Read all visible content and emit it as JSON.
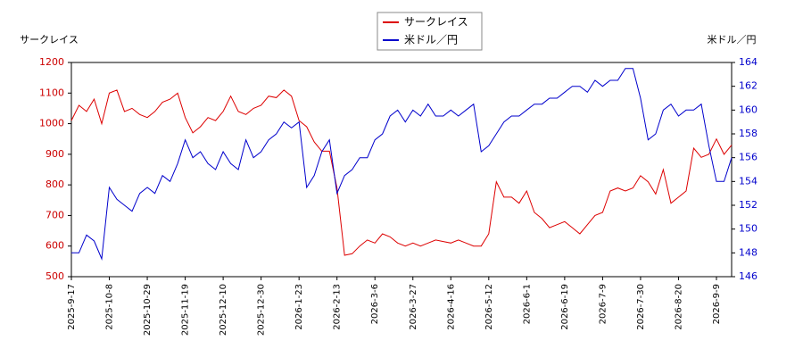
{
  "chart_data": {
    "type": "line",
    "y_label": "サークレイス",
    "y2_label": "米ドル／円",
    "categories": [
      "2025-9-17",
      null,
      null,
      null,
      null,
      "2025-10-8",
      null,
      null,
      null,
      null,
      "2025-10-29",
      null,
      null,
      null,
      null,
      "2025-11-19",
      null,
      null,
      null,
      null,
      "2025-12-10",
      null,
      null,
      null,
      null,
      "2025-12-30",
      null,
      null,
      null,
      null,
      "2026-1-23",
      null,
      null,
      null,
      null,
      "2026-2-13",
      null,
      null,
      null,
      null,
      "2026-3-6",
      null,
      null,
      null,
      null,
      "2026-3-27",
      null,
      null,
      null,
      null,
      "2026-4-16",
      null,
      null,
      null,
      null,
      "2026-5-12",
      null,
      null,
      null,
      null,
      "2026-6-1",
      null,
      null,
      null,
      null,
      "2026-6-19",
      null,
      null,
      null,
      null,
      "2026-7-9",
      null,
      null,
      null,
      null,
      "2026-7-30",
      null,
      null,
      null,
      null,
      "2026-8-20",
      null,
      null,
      null,
      null,
      "2026-9-9",
      null,
      null
    ],
    "series": [
      {
        "name": "サークレイス",
        "color": "#dd0000",
        "axis": "y",
        "values": [
          1010,
          1060,
          1040,
          1080,
          1000,
          1100,
          1110,
          1040,
          1050,
          1030,
          1020,
          1040,
          1070,
          1080,
          1100,
          1020,
          970,
          990,
          1020,
          1010,
          1040,
          1090,
          1040,
          1030,
          1050,
          1060,
          1090,
          1085,
          1110,
          1090,
          1010,
          990,
          940,
          910,
          910,
          790,
          570,
          575,
          600,
          620,
          610,
          640,
          630,
          610,
          600,
          610,
          600,
          610,
          620,
          615,
          610,
          620,
          610,
          600,
          600,
          640,
          810,
          760,
          760,
          740,
          780,
          710,
          690,
          660,
          670,
          680,
          660,
          640,
          670,
          700,
          710,
          780,
          790,
          780,
          790,
          830,
          810,
          770,
          850,
          740,
          760,
          780,
          920,
          890,
          900,
          950,
          900,
          930
        ]
      },
      {
        "name": "米ドル／円",
        "color": "#0000cc",
        "axis": "y2",
        "values": [
          148,
          148,
          149.5,
          149,
          147.5,
          153.5,
          152.5,
          152,
          151.5,
          153,
          153.5,
          153,
          154.5,
          154,
          155.5,
          157.5,
          156,
          156.5,
          155.5,
          155,
          156.5,
          155.5,
          155,
          157.5,
          156,
          156.5,
          157.5,
          158,
          159,
          158.5,
          159,
          153.5,
          154.5,
          156.5,
          157.5,
          153,
          154.5,
          155,
          156,
          156,
          157.5,
          158,
          159.5,
          160,
          159,
          160,
          159.5,
          160.5,
          159.5,
          159.5,
          160,
          159.5,
          160,
          160.5,
          156.5,
          157,
          158,
          159,
          159.5,
          159.5,
          160,
          160.5,
          160.5,
          161,
          161,
          161.5,
          162,
          162,
          161.5,
          162.5,
          162,
          162.5,
          162.5,
          163.5,
          163.5,
          161,
          157.5,
          158,
          160,
          160.5,
          159.5,
          160,
          160,
          160.5,
          157,
          154,
          154,
          156
        ]
      }
    ],
    "ylim": [
      500,
      1200
    ],
    "yticks": [
      500,
      600,
      700,
      800,
      900,
      1000,
      1100,
      1200
    ],
    "y2lim": [
      146,
      164
    ],
    "y2ticks": [
      146,
      148,
      150,
      152,
      154,
      156,
      158,
      160,
      162,
      164
    ],
    "grid": false,
    "legend": "top"
  }
}
